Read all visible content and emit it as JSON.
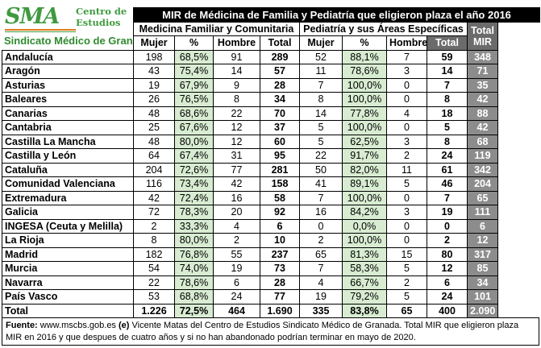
{
  "logo": {
    "brand": "SMA",
    "centre_line1": "Centro de",
    "centre_line2": "Estudios",
    "subtitle": "Sindicato Médico de Granada"
  },
  "title": "MIR de Médicina de Familia  y Pediatría que eligieron plaza el año 2016",
  "group_headers": {
    "mfyc": "Medicina Familiar y Comunitaria",
    "ped": "Pediatría y sus Áreas Específicas",
    "total_mir_line1": "Total",
    "total_mir_line2": "MIR"
  },
  "columns": {
    "mujer": "Mujer",
    "pct": "%",
    "hombre": "Hombre",
    "total": "Total"
  },
  "rows": [
    {
      "region": "Andalucía",
      "m_mujer": "198",
      "m_pct": "68,5%",
      "m_hombre": "91",
      "m_total": "289",
      "p_mujer": "52",
      "p_pct": "88,1%",
      "p_hombre": "7",
      "p_total": "59",
      "mir": "348"
    },
    {
      "region": "Aragón",
      "m_mujer": "43",
      "m_pct": "75,4%",
      "m_hombre": "14",
      "m_total": "57",
      "p_mujer": "11",
      "p_pct": "78,6%",
      "p_hombre": "3",
      "p_total": "14",
      "mir": "71"
    },
    {
      "region": "Asturias",
      "m_mujer": "19",
      "m_pct": "67,9%",
      "m_hombre": "9",
      "m_total": "28",
      "p_mujer": "7",
      "p_pct": "100,0%",
      "p_hombre": "0",
      "p_total": "7",
      "mir": "35"
    },
    {
      "region": "Baleares",
      "m_mujer": "26",
      "m_pct": "76,5%",
      "m_hombre": "8",
      "m_total": "34",
      "p_mujer": "8",
      "p_pct": "100,0%",
      "p_hombre": "0",
      "p_total": "8",
      "mir": "42"
    },
    {
      "region": "Canarias",
      "m_mujer": "48",
      "m_pct": "68,6%",
      "m_hombre": "22",
      "m_total": "70",
      "p_mujer": "14",
      "p_pct": "77,8%",
      "p_hombre": "4",
      "p_total": "18",
      "mir": "88"
    },
    {
      "region": "Cantabria",
      "m_mujer": "25",
      "m_pct": "67,6%",
      "m_hombre": "12",
      "m_total": "37",
      "p_mujer": "5",
      "p_pct": "100,0%",
      "p_hombre": "0",
      "p_total": "5",
      "mir": "42"
    },
    {
      "region": "Castilla La Mancha",
      "m_mujer": "48",
      "m_pct": "80,0%",
      "m_hombre": "12",
      "m_total": "60",
      "p_mujer": "5",
      "p_pct": "62,5%",
      "p_hombre": "3",
      "p_total": "8",
      "mir": "68"
    },
    {
      "region": "Castilla y León",
      "m_mujer": "64",
      "m_pct": "67,4%",
      "m_hombre": "31",
      "m_total": "95",
      "p_mujer": "22",
      "p_pct": "91,7%",
      "p_hombre": "2",
      "p_total": "24",
      "mir": "119"
    },
    {
      "region": "Cataluña",
      "m_mujer": "204",
      "m_pct": "72,6%",
      "m_hombre": "77",
      "m_total": "281",
      "p_mujer": "50",
      "p_pct": "82,0%",
      "p_hombre": "11",
      "p_total": "61",
      "mir": "342"
    },
    {
      "region": "Comunidad Valenciana",
      "m_mujer": "116",
      "m_pct": "73,4%",
      "m_hombre": "42",
      "m_total": "158",
      "p_mujer": "41",
      "p_pct": "89,1%",
      "p_hombre": "5",
      "p_total": "46",
      "mir": "204"
    },
    {
      "region": "Extremadura",
      "m_mujer": "42",
      "m_pct": "72,4%",
      "m_hombre": "16",
      "m_total": "58",
      "p_mujer": "7",
      "p_pct": "100,0%",
      "p_hombre": "0",
      "p_total": "7",
      "mir": "65"
    },
    {
      "region": "Galicia",
      "m_mujer": "72",
      "m_pct": "78,3%",
      "m_hombre": "20",
      "m_total": "92",
      "p_mujer": "16",
      "p_pct": "84,2%",
      "p_hombre": "3",
      "p_total": "19",
      "mir": "111"
    },
    {
      "region": "INGESA (Ceuta y Melilla)",
      "m_mujer": "2",
      "m_pct": "33,3%",
      "m_hombre": "4",
      "m_total": "6",
      "p_mujer": "0",
      "p_pct": "0,0%",
      "p_hombre": "0",
      "p_total": "0",
      "mir": "6"
    },
    {
      "region": "La Rioja",
      "m_mujer": "8",
      "m_pct": "80,0%",
      "m_hombre": "2",
      "m_total": "10",
      "p_mujer": "2",
      "p_pct": "100,0%",
      "p_hombre": "0",
      "p_total": "2",
      "mir": "12"
    },
    {
      "region": "Madrid",
      "m_mujer": "182",
      "m_pct": "76,8%",
      "m_hombre": "55",
      "m_total": "237",
      "p_mujer": "65",
      "p_pct": "81,3%",
      "p_hombre": "15",
      "p_total": "80",
      "mir": "317"
    },
    {
      "region": "Murcia",
      "m_mujer": "54",
      "m_pct": "74,0%",
      "m_hombre": "19",
      "m_total": "73",
      "p_mujer": "7",
      "p_pct": "58,3%",
      "p_hombre": "5",
      "p_total": "12",
      "mir": "85"
    },
    {
      "region": "Navarra",
      "m_mujer": "22",
      "m_pct": "78,6%",
      "m_hombre": "6",
      "m_total": "28",
      "p_mujer": "4",
      "p_pct": "66,7%",
      "p_hombre": "2",
      "p_total": "6",
      "mir": "34"
    },
    {
      "region": "País Vasco",
      "m_mujer": "53",
      "m_pct": "68,8%",
      "m_hombre": "24",
      "m_total": "77",
      "p_mujer": "19",
      "p_pct": "79,2%",
      "p_hombre": "5",
      "p_total": "24",
      "mir": "101"
    }
  ],
  "total_row": {
    "region": "Total",
    "m_mujer": "1.226",
    "m_pct": "72,5%",
    "m_hombre": "464",
    "m_total": "1.690",
    "p_mujer": "335",
    "p_pct": "83,8%",
    "p_hombre": "65",
    "p_total": "400",
    "mir": "2.090"
  },
  "footer": {
    "source_label": "Fuente:",
    "source_text": " www.mscbs.gob.es ",
    "author_mark": "(e)",
    "note": " Vicente Matas del Centro de Estudios Sindicato Médico de Granada. Total MIR que eligieron plaza MIR en 2016  y que despues de cuatro años  y si no han abandonado podrían terminar en mayo de 2020."
  },
  "colors": {
    "brand_green": "#3f9a3f",
    "brand_orange": "#e07b1f",
    "pct_fill": "#d8ecd2",
    "total_mir_fill": "#8c8c8c"
  }
}
